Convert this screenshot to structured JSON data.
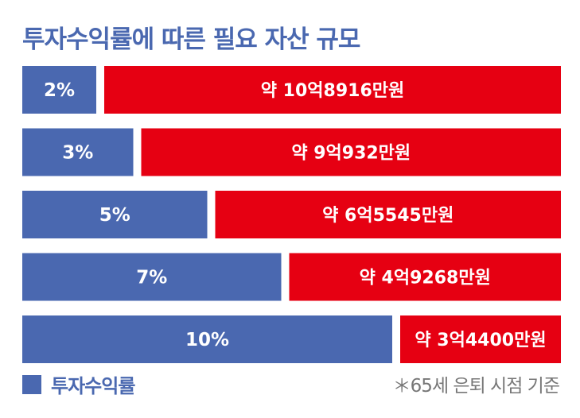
{
  "chart_data": {
    "type": "bar",
    "title": "투자수익률에 따른 필요 자산 규모",
    "categories": [
      "2%",
      "3%",
      "5%",
      "7%",
      "10%"
    ],
    "series": [
      {
        "name": "투자수익률",
        "values": [
          2,
          3,
          5,
          7,
          10
        ]
      }
    ],
    "amounts": [
      108916,
      90932,
      65545,
      49268,
      34400
    ],
    "amount_labels": [
      "약 10억8916만원",
      "약 9억932만원",
      "약 6억5545만원",
      "약 4억9268만원",
      "약 3억4400만원"
    ],
    "colors": {
      "rate": "#4a68b0",
      "amount": "#e60012"
    },
    "legend_position": "bottom-left",
    "footnote": "＊65세 은퇴 시점 기준"
  }
}
